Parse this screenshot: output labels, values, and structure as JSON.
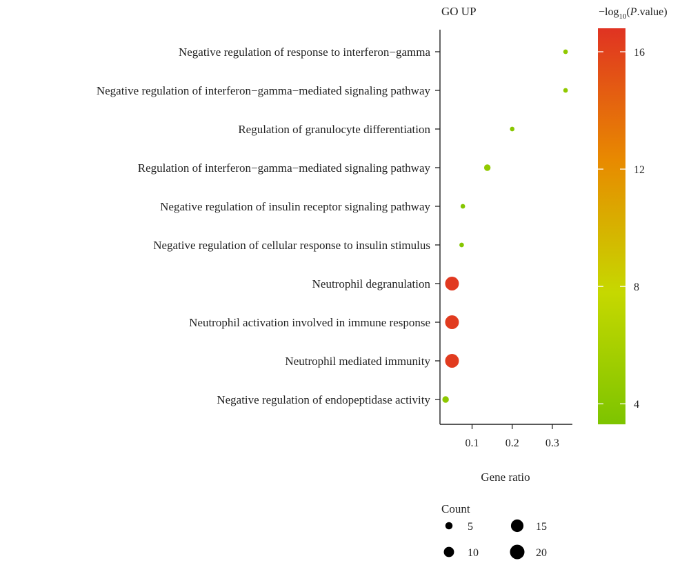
{
  "chart_data": {
    "type": "scatter",
    "title": "GO UP",
    "xlabel": "Gene ratio",
    "xlim": [
      0.02,
      0.35
    ],
    "xticks": [
      0.1,
      0.2,
      0.3
    ],
    "xtick_labels": [
      "0.1",
      "0.2",
      "0.3"
    ],
    "categories": [
      "Negative regulation of response to interferon−gamma",
      "Negative regulation of interferon−gamma−mediated signaling pathway",
      "Regulation of granulocyte differentiation",
      "Regulation of interferon−gamma−mediated signaling pathway",
      "Negative regulation of insulin receptor signaling pathway",
      "Negative regulation of cellular response to insulin stimulus",
      "Neutrophil degranulation",
      "Neutrophil activation involved in immune response",
      "Neutrophil mediated immunity",
      "Negative regulation of endopeptidase activity"
    ],
    "points": [
      {
        "gene_ratio": 0.333,
        "count": 2,
        "neg_log10_p": 4.5
      },
      {
        "gene_ratio": 0.333,
        "count": 2,
        "neg_log10_p": 4.5
      },
      {
        "gene_ratio": 0.2,
        "count": 2,
        "neg_log10_p": 4.0
      },
      {
        "gene_ratio": 0.138,
        "count": 4,
        "neg_log10_p": 4.6
      },
      {
        "gene_ratio": 0.077,
        "count": 2,
        "neg_log10_p": 3.8
      },
      {
        "gene_ratio": 0.074,
        "count": 2,
        "neg_log10_p": 3.8
      },
      {
        "gene_ratio": 0.05,
        "count": 18,
        "neg_log10_p": 16.5
      },
      {
        "gene_ratio": 0.05,
        "count": 18,
        "neg_log10_p": 16.4
      },
      {
        "gene_ratio": 0.05,
        "count": 18,
        "neg_log10_p": 16.4
      },
      {
        "gene_ratio": 0.034,
        "count": 4,
        "neg_log10_p": 4.3
      }
    ],
    "color_scale": {
      "title_prefix": "−log",
      "title_sub": "10",
      "title_paren_open": "(",
      "title_italic": "P",
      "title_suffix": ".value)",
      "min": 3.3,
      "max": 16.8,
      "ticks": [
        4,
        8,
        12,
        16
      ],
      "tick_labels": [
        "4",
        "8",
        "12",
        "16"
      ],
      "colors": [
        "#7dc400",
        "#c6d800",
        "#e88a00",
        "#e03322"
      ]
    },
    "size_legend": {
      "title": "Count",
      "values": [
        5,
        10,
        15,
        20
      ],
      "labels": [
        "5",
        "10",
        "15",
        "20"
      ],
      "color": "#000000"
    }
  }
}
